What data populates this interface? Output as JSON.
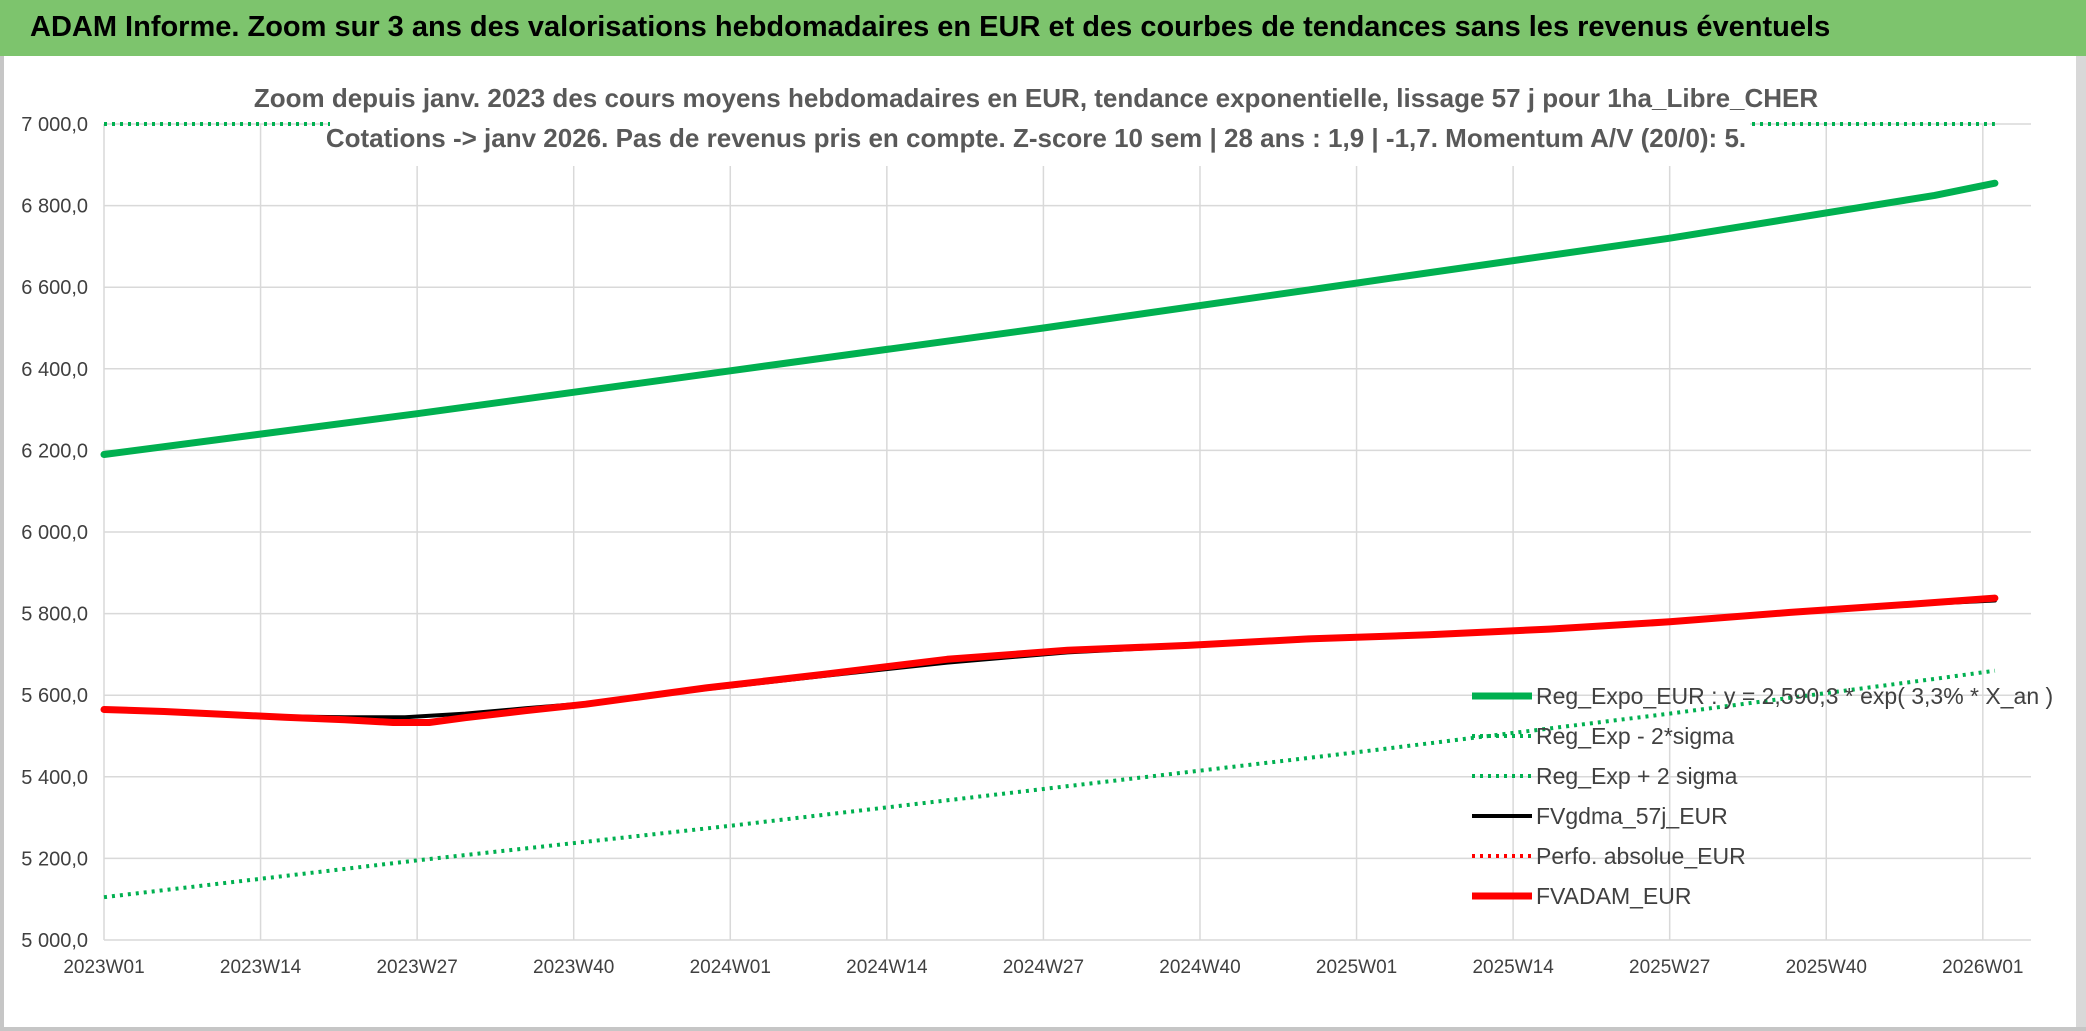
{
  "banner_title": "ADAM Informe. Zoom sur 3 ans des valorisations hebdomadaires en EUR et des courbes de tendances sans les revenus éventuels",
  "colors": {
    "banner_bg": "#7dc46d",
    "green_series": "#00b050",
    "black_series": "#000000",
    "red_series": "#ff0000",
    "grid": "#d9d9d9"
  },
  "chart_data": {
    "type": "line",
    "title_line1": "Zoom depuis janv. 2023 des cours moyens hebdomadaires en EUR, tendance exponentielle, lissage 57 j pour 1ha_Libre_CHER",
    "title_line2": "Cotations -> janv 2026. Pas de revenus pris en compte. Z-score 10 sem | 28 ans : 1,9 | -1,7. Momentum A/V (20/0): 5.",
    "ylim": [
      5000,
      7000
    ],
    "y_ticks": [
      "5 000,0",
      "5 200,0",
      "5 400,0",
      "5 600,0",
      "5 800,0",
      "6 000,0",
      "6 200,0",
      "6 400,0",
      "6 600,0",
      "6 800,0",
      "7 000,0"
    ],
    "x_range_weeks": [
      0,
      160
    ],
    "categories": [
      "2023W01",
      "2023W14",
      "2023W27",
      "2023W40",
      "2024W01",
      "2024W14",
      "2024W27",
      "2024W40",
      "2025W01",
      "2025W14",
      "2025W27",
      "2025W40",
      "2026W01"
    ],
    "series": [
      {
        "name": "Reg_Expo_EUR : y = 2,590,3 * exp( 3,3% *  X_an )",
        "style": "solid-thick",
        "color": "#00b050",
        "points": [
          [
            0,
            6190
          ],
          [
            26,
            6290
          ],
          [
            52,
            6395
          ],
          [
            78,
            6500
          ],
          [
            104,
            6610
          ],
          [
            130,
            6720
          ],
          [
            152,
            6825
          ],
          [
            157,
            6855
          ]
        ]
      },
      {
        "name": "Reg_Exp - 2*sigma",
        "style": "dotted",
        "color": "#00b050",
        "points": [
          [
            0,
            5105
          ],
          [
            26,
            5195
          ],
          [
            52,
            5280
          ],
          [
            78,
            5370
          ],
          [
            104,
            5460
          ],
          [
            130,
            5555
          ],
          [
            152,
            5640
          ],
          [
            157,
            5660
          ]
        ]
      },
      {
        "name": "Reg_Exp + 2 sigma",
        "style": "dotted",
        "color": "#00b050",
        "points": [
          [
            0,
            7000
          ],
          [
            157,
            7000
          ]
        ]
      },
      {
        "name": "FVgdma_57j_EUR",
        "style": "solid",
        "color": "#000000",
        "points": [
          [
            0,
            5565
          ],
          [
            5,
            5560
          ],
          [
            10,
            5553
          ],
          [
            15,
            5548
          ],
          [
            20,
            5546
          ],
          [
            25,
            5546
          ],
          [
            30,
            5555
          ],
          [
            35,
            5568
          ],
          [
            40,
            5580
          ],
          [
            50,
            5615
          ],
          [
            60,
            5648
          ],
          [
            70,
            5680
          ],
          [
            80,
            5705
          ],
          [
            90,
            5720
          ],
          [
            100,
            5735
          ],
          [
            110,
            5748
          ],
          [
            120,
            5760
          ],
          [
            130,
            5782
          ],
          [
            140,
            5805
          ],
          [
            150,
            5822
          ],
          [
            157,
            5832
          ]
        ]
      },
      {
        "name": "Perfo. absolue_EUR",
        "style": "dotted",
        "color": "#ff0000",
        "points": []
      },
      {
        "name": "FVADAM_EUR",
        "style": "solid-thick",
        "color": "#ff0000",
        "points": [
          [
            0,
            5565
          ],
          [
            5,
            5560
          ],
          [
            10,
            5553
          ],
          [
            15,
            5546
          ],
          [
            20,
            5540
          ],
          [
            24,
            5533
          ],
          [
            27,
            5533
          ],
          [
            30,
            5545
          ],
          [
            35,
            5562
          ],
          [
            40,
            5578
          ],
          [
            50,
            5618
          ],
          [
            60,
            5652
          ],
          [
            70,
            5688
          ],
          [
            80,
            5710
          ],
          [
            90,
            5722
          ],
          [
            100,
            5738
          ],
          [
            110,
            5748
          ],
          [
            120,
            5762
          ],
          [
            130,
            5780
          ],
          [
            140,
            5803
          ],
          [
            150,
            5823
          ],
          [
            157,
            5838
          ]
        ]
      }
    ],
    "legend_position": "right"
  }
}
